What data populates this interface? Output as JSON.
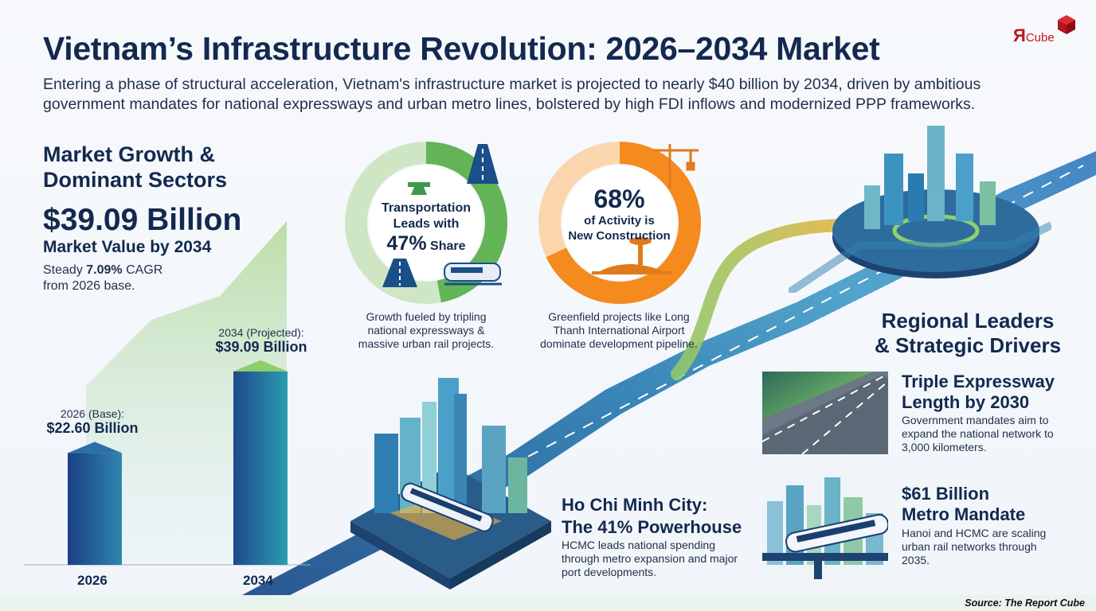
{
  "header": {
    "title": "Vietnam’s Infrastructure Revolution: 2026–2034 Market",
    "subtitle": "Entering a phase of structural acceleration, Vietnam's infrastructure market is projected to nearly $40 billion by 2034, driven by ambitious government mandates for national expressways and urban metro lines, bolstered by high FDI inflows and modernized PPP frameworks.",
    "logo_r": "Я",
    "logo_cube": "Cube"
  },
  "market_growth": {
    "heading_line1": "Market Growth &",
    "heading_line2": "Dominant Sectors",
    "big_value": "$39.09 Billion",
    "big_label": "Market Value by 2034",
    "cagr_prefix": "Steady ",
    "cagr_value": "7.09%",
    "cagr_suffix": " CAGR",
    "cagr_line2": "from 2026 base."
  },
  "chart_data": {
    "type": "bar",
    "categories": [
      "2026",
      "2034"
    ],
    "values": [
      22.6,
      39.09
    ],
    "ylim": [
      0,
      45
    ],
    "bar_notes": [
      {
        "label": "2026 (Base):",
        "value": "$22.60 Billion"
      },
      {
        "label": "2034 (Projected):",
        "value": "$39.09 Billion"
      }
    ]
  },
  "transport_card": {
    "line1": "Transportation",
    "line2": "Leads with",
    "pct": "47%",
    "pct_suffix": "Share",
    "desc": "Growth fueled by tripling national expressways & massive urban rail projects.",
    "share_value": 47,
    "colors": [
      "#63b457",
      "#cfe6c4"
    ]
  },
  "construction_card": {
    "pct": "68%",
    "line2": "of Activity is",
    "line3": "New Construction",
    "desc": "Greenfield projects like Long Thanh International Airport dominate development pipeline.",
    "share_value": 68,
    "colors": [
      "#f58a1f",
      "#fbd6ad"
    ]
  },
  "regional": {
    "heading_line1": "Regional Leaders",
    "heading_line2": "& Strategic Drivers"
  },
  "expressway": {
    "title_line1": "Triple Expressway",
    "title_line2": "Length by 2030",
    "desc": "Government mandates aim to expand the national network to 3,000 kilometers."
  },
  "metro": {
    "title_line1": "$61 Billion",
    "title_line2": "Metro Mandate",
    "desc": "Hanoi and HCMC are scaling urban rail networks through 2035."
  },
  "hcmc": {
    "title_line1": "Ho Chi Minh City:",
    "title_line2": "The 41% Powerhouse",
    "desc": "HCMC leads national spending through metro expansion and major port developments."
  },
  "footer": {
    "source": "Source: The Report Cube"
  },
  "icons": [
    "highway-icon",
    "train-icon",
    "crane-icon",
    "airport-icon",
    "city-icon",
    "road-icon"
  ]
}
